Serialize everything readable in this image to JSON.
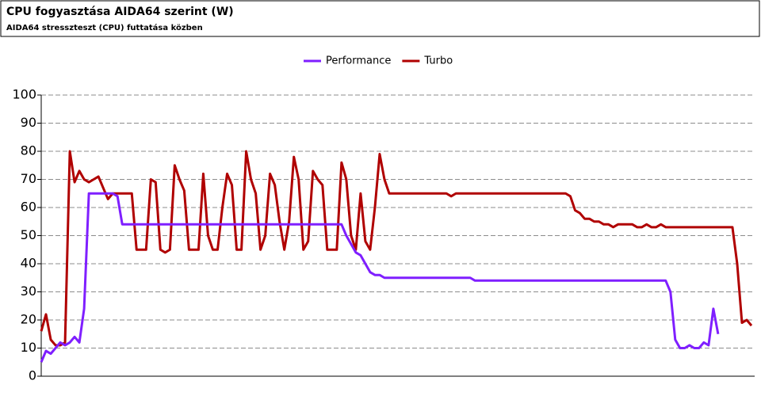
{
  "chart_data": {
    "type": "line",
    "title": "CPU fogyasztása AIDA64 szerint (W)",
    "subtitle": "AIDA64 stresszteszt (CPU) futtatása közben",
    "categories": [
      null,
      null,
      null,
      null,
      null,
      null,
      null,
      null,
      null,
      null,
      null,
      null,
      null,
      null,
      null,
      null,
      null,
      null,
      null,
      null,
      null,
      null,
      null,
      null,
      null,
      null,
      null,
      null,
      null,
      null,
      null,
      null,
      null,
      null,
      null,
      null,
      null,
      null,
      null,
      null,
      null,
      null,
      null,
      null,
      null,
      null,
      null,
      null,
      null,
      null,
      null,
      null,
      null,
      null,
      null,
      null,
      null,
      null,
      null,
      null,
      null,
      null,
      null,
      null,
      null,
      null,
      null,
      null,
      null,
      null,
      null,
      null,
      null,
      null,
      null,
      null,
      null,
      null,
      null,
      null,
      null,
      null,
      null,
      null,
      null,
      null,
      null,
      null,
      null,
      null,
      null,
      null,
      null,
      null,
      null,
      null,
      null,
      null,
      null,
      null,
      null,
      null,
      null,
      null,
      null,
      null,
      null,
      null,
      null,
      null,
      null,
      null,
      null,
      null,
      null,
      null,
      null,
      null,
      null,
      null,
      null,
      null,
      null,
      null,
      null,
      null,
      null,
      null,
      null,
      null,
      null,
      null,
      null,
      null,
      null,
      null,
      null,
      null,
      null,
      null,
      null,
      null,
      null,
      null,
      null,
      null,
      null,
      null,
      null,
      null
    ],
    "series": [
      {
        "name": "Performance",
        "color": "#7f1fff",
        "values": [
          5,
          9,
          8,
          10,
          12,
          11,
          12,
          14,
          12,
          24,
          65,
          65,
          65,
          65,
          65,
          65,
          64,
          54,
          54,
          54,
          54,
          54,
          54,
          54,
          54,
          54,
          54,
          54,
          54,
          54,
          54,
          54,
          54,
          54,
          54,
          54,
          54,
          54,
          54,
          54,
          54,
          54,
          54,
          54,
          54,
          54,
          54,
          54,
          54,
          54,
          54,
          54,
          54,
          54,
          54,
          54,
          54,
          54,
          54,
          54,
          54,
          54,
          54,
          54,
          50,
          47,
          44,
          43,
          40,
          37,
          36,
          36,
          35,
          35,
          35,
          35,
          35,
          35,
          35,
          35,
          35,
          35,
          35,
          35,
          35,
          35,
          35,
          35,
          35,
          35,
          35,
          34,
          34,
          34,
          34,
          34,
          34,
          34,
          34,
          34,
          34,
          34,
          34,
          34,
          34,
          34,
          34,
          34,
          34,
          34,
          34,
          34,
          34,
          34,
          34,
          34,
          34,
          34,
          34,
          34,
          34,
          34,
          34,
          34,
          34,
          34,
          34,
          34,
          34,
          34,
          34,
          34,
          30,
          13,
          10,
          10,
          11,
          10,
          10,
          12,
          11,
          24,
          15,
          null,
          null,
          null,
          null,
          null,
          null,
          null
        ]
      },
      {
        "name": "Turbo",
        "color": "#b00000",
        "values": [
          16,
          22,
          13,
          11,
          11,
          12,
          80,
          69,
          73,
          70,
          69,
          70,
          71,
          67,
          63,
          65,
          65,
          65,
          65,
          65,
          45,
          45,
          45,
          70,
          69,
          45,
          44,
          45,
          75,
          70,
          66,
          45,
          45,
          45,
          72,
          50,
          45,
          45,
          60,
          72,
          68,
          45,
          45,
          80,
          70,
          65,
          45,
          50,
          72,
          68,
          55,
          45,
          55,
          78,
          70,
          45,
          48,
          73,
          70,
          68,
          45,
          45,
          45,
          76,
          70,
          50,
          45,
          65,
          48,
          45,
          60,
          79,
          70,
          65,
          65,
          65,
          65,
          65,
          65,
          65,
          65,
          65,
          65,
          65,
          65,
          65,
          64,
          65,
          65,
          65,
          65,
          65,
          65,
          65,
          65,
          65,
          65,
          65,
          65,
          65,
          65,
          65,
          65,
          65,
          65,
          65,
          65,
          65,
          65,
          65,
          65,
          64,
          59,
          58,
          56,
          56,
          55,
          55,
          54,
          54,
          53,
          54,
          54,
          54,
          54,
          53,
          53,
          54,
          53,
          53,
          54,
          53,
          53,
          53,
          53,
          53,
          53,
          53,
          53,
          53,
          53,
          53,
          53,
          53,
          53,
          53,
          40,
          19,
          20,
          18
        ]
      }
    ],
    "ylim": [
      0,
      100
    ],
    "yticks": [
      0,
      10,
      20,
      30,
      40,
      50,
      60,
      70,
      80,
      90,
      100
    ],
    "grid": true
  }
}
